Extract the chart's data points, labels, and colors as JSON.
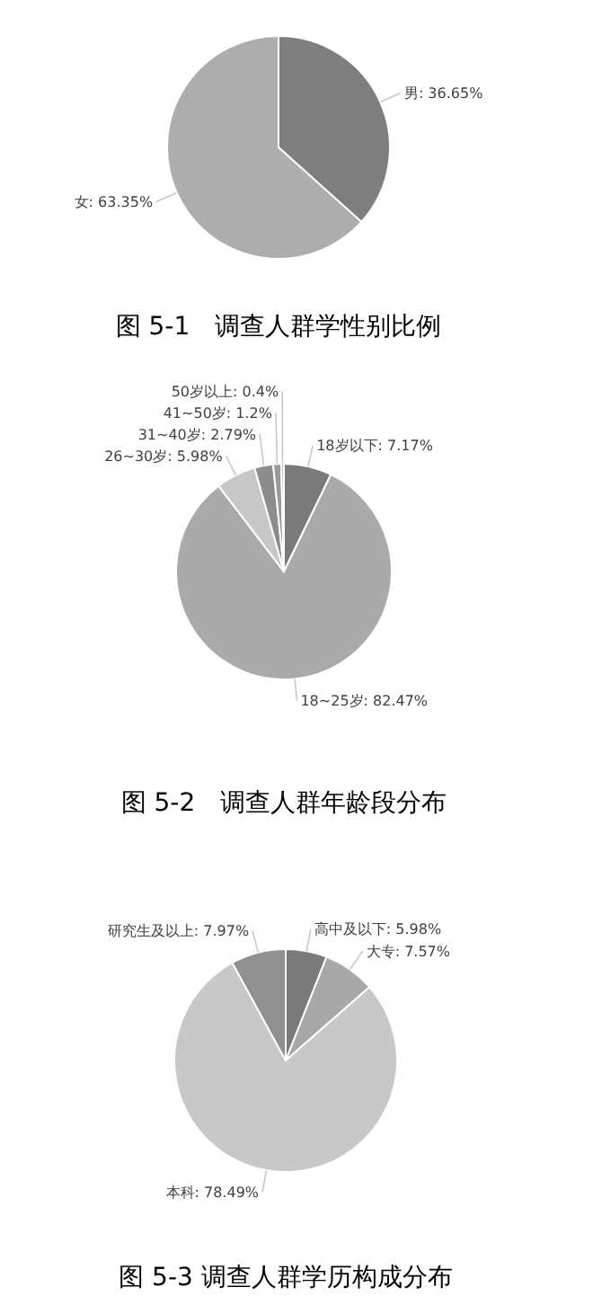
{
  "chart_data": [
    {
      "type": "pie",
      "title": "图 5-1　调查人群学性别比例",
      "categories": [
        "男",
        "女"
      ],
      "values": [
        36.65,
        63.35
      ],
      "colors": [
        "#7f7f7f",
        "#adadad"
      ],
      "value_labels": [
        ": 36.65%",
        ": 63.35%"
      ]
    },
    {
      "type": "pie",
      "title": "图 5-2　调查人群年龄段分布",
      "categories": [
        "18岁以下",
        "18~25岁",
        "26~30岁",
        "31~40岁",
        "41~50岁",
        "50岁以上"
      ],
      "values": [
        7.17,
        82.47,
        5.98,
        2.79,
        1.2,
        0.4
      ],
      "colors": [
        "#7a7a7a",
        "#aaaaaa",
        "#c8c8c8",
        "#8c8c8c",
        "#9a9a9a",
        "#b4b4b4"
      ],
      "value_labels": [
        ": 7.17%",
        ": 82.47%",
        ": 5.98%",
        ": 2.79%",
        ": 1.2%",
        ": 0.4%"
      ]
    },
    {
      "type": "pie",
      "title": "图 5-3 调查人群学历构成分布",
      "categories": [
        "高中及以下",
        "大专",
        "本科",
        "研究生及以上"
      ],
      "values": [
        5.98,
        7.57,
        78.49,
        7.97
      ],
      "colors": [
        "#7a7a7a",
        "#a8a8a8",
        "#c8c8c8",
        "#909090"
      ],
      "value_labels": [
        ": 5.98%",
        ": 7.57%",
        ": 78.49%",
        ": 7.97%"
      ]
    }
  ]
}
